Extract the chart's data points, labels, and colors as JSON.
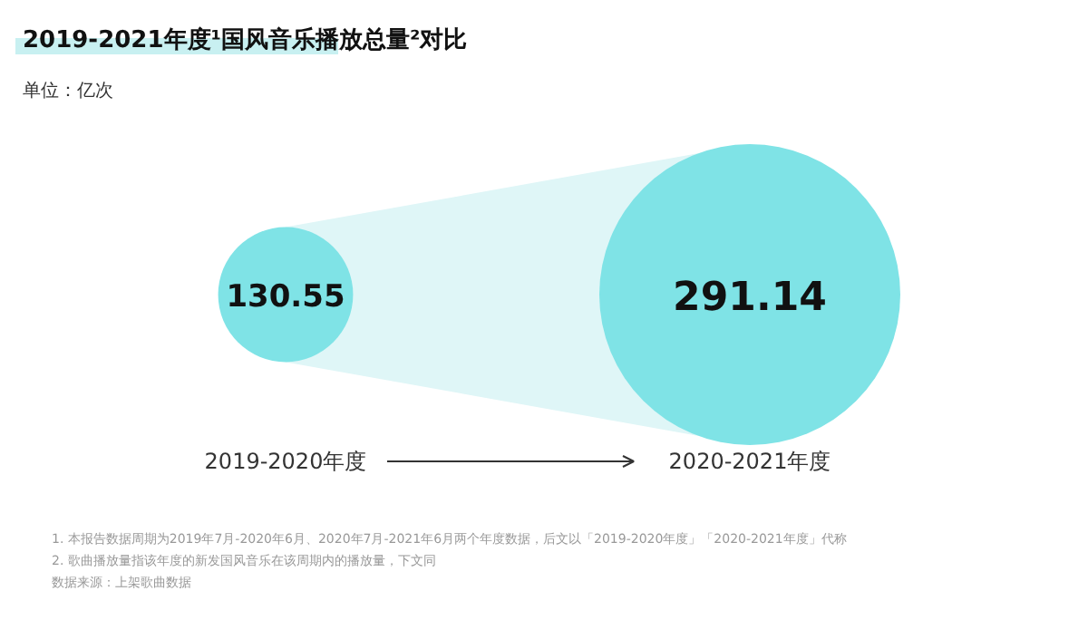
{
  "chart_data": {
    "type": "other",
    "title": "2019-2021年度¹国风音乐播放总量²对比",
    "subtitle": "单位：亿次",
    "categories": [
      "2019-2020年度",
      "2020-2021年度"
    ],
    "values": [
      130.55,
      291.14
    ],
    "colors": [
      "#7fe3e6",
      "#7fe3e6"
    ],
    "data_labels": true,
    "annotations": [
      "1. 本报告数据周期为2019年7月-2020年6月、2020年7月-2021年6月两个年度数据，后文以「2019-2020年度」「2020-2021年度」代称",
      "2. 歌曲播放量指该年度的新发国风音乐在该周期内的播放量，下文同",
      "数据来源：上架歌曲数据"
    ]
  }
}
